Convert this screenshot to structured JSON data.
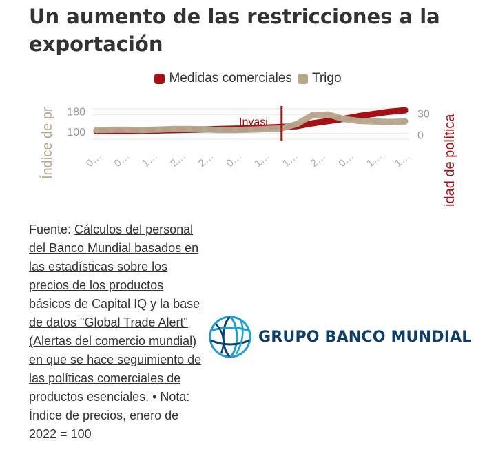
{
  "title": "Un aumento de las restricciones a la exportación",
  "legend": [
    {
      "label": "Medidas comerciales",
      "color": "#a50f15"
    },
    {
      "label": "Trigo",
      "color": "#b5a68c"
    }
  ],
  "chart_data": {
    "type": "line",
    "ylabel_left": "Índice de pr",
    "ylabel_right": "idad de política",
    "y_left_ticks": [
      "180",
      "100"
    ],
    "y_right_ticks": [
      "30",
      "0"
    ],
    "y_left_range": [
      70,
      190
    ],
    "y_right_range": [
      -6,
      36
    ],
    "x_ticks": [
      "0…",
      "0…",
      "1…",
      "2…",
      "2…",
      "0…",
      "1…",
      "1…",
      "2…",
      "0…",
      "1…",
      "1…"
    ],
    "annotation": "Invasi…",
    "annotation_x": 0.6,
    "series": [
      {
        "name": "Medidas comerciales",
        "axis": "right",
        "color": "#a50f15",
        "x": [
          0,
          0.05,
          0.1,
          0.15,
          0.2,
          0.25,
          0.3,
          0.35,
          0.4,
          0.45,
          0.5,
          0.55,
          0.6,
          0.65,
          0.7,
          0.75,
          0.8,
          0.85,
          0.9,
          0.95,
          1.0
        ],
        "values": [
          5,
          5,
          5,
          5.5,
          6,
          6.5,
          7,
          7.5,
          8,
          8.5,
          9,
          10,
          11,
          12,
          16,
          19,
          22,
          26,
          29,
          32,
          34
        ]
      },
      {
        "name": "Trigo",
        "axis": "left",
        "color": "#b5a68c",
        "x": [
          0,
          0.05,
          0.1,
          0.15,
          0.2,
          0.25,
          0.3,
          0.35,
          0.4,
          0.45,
          0.5,
          0.55,
          0.6,
          0.65,
          0.7,
          0.75,
          0.8,
          0.85,
          0.9,
          0.95,
          1.0
        ],
        "values": [
          106,
          107,
          107,
          106,
          108,
          110,
          110,
          109,
          106,
          106,
          108,
          110,
          113,
          130,
          165,
          168,
          150,
          142,
          140,
          138,
          140
        ]
      }
    ]
  },
  "source": {
    "prefix": "Fuente: ",
    "link_text": "Cálculos del personal del Banco Mundial basados en las estadísticas sobre los precios de los productos básicos de Capital IQ y la base de datos \"Global Trade Alert\" (Alertas del comercio mundial) en que se hace seguimiento de las políticas comerciales de productos esenciales.",
    "note": " • Nota: Índice de precios, enero de 2022 = 100"
  },
  "logo": {
    "text": "GRUPO BANCO MUNDIAL",
    "icon": "globe-icon",
    "color": "#0a3f6b"
  }
}
